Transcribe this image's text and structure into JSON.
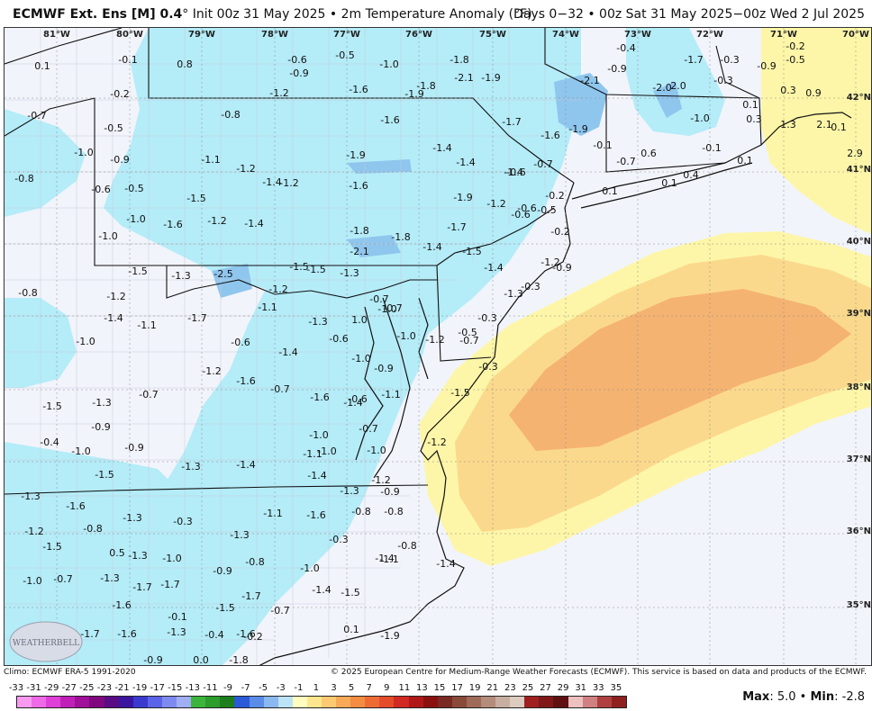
{
  "header": {
    "title_bold": "ECMWF Ext. Ens [M] 0.4",
    "title_rest": "° Init 00z 31 May 2025 • 2m Temperature Anomaly (°F)",
    "valid": "Days 0−32 • 00z Sat 31 May 2025−00z Wed 2 Jul 2025"
  },
  "footer": {
    "climo": "Climo: ECMWF ERA-5 1991-2020",
    "copyright": "© 2025 European Centre for Medium-Range Weather Forecasts (ECMWF). This service is based on data and products of the ECMWF.",
    "max_label": "Max",
    "max_value": "5.0",
    "min_label": "Min",
    "min_value": "-2.8"
  },
  "colors": {
    "background_land": "#f2f4fb",
    "cool_anomaly": "#b4ecf8",
    "cooler_anomaly": "#8fc6ee",
    "warm_light": "#fdf6a8",
    "warm_mid": "#fbd98c",
    "warm_strong": "#f5b372",
    "border": "#111111"
  },
  "map": {
    "longitudes": [
      "81°W",
      "80°W",
      "79°W",
      "78°W",
      "77°W",
      "76°W",
      "75°W",
      "74°W",
      "73°W",
      "72°W",
      "71°W",
      "70°W"
    ],
    "latitudes": [
      "42°N",
      "41°N",
      "40°N",
      "39°N",
      "38°N",
      "37°N",
      "36°N",
      "35°N"
    ],
    "values": [
      {
        "v": "0.1"
      },
      {
        "v": "-0.1"
      },
      {
        "v": "0.8"
      },
      {
        "v": "-0.6"
      },
      {
        "v": "-0.9"
      },
      {
        "v": "-0.5"
      },
      {
        "v": "-1.0"
      },
      {
        "v": "-1.8"
      },
      {
        "v": "-2.1"
      },
      {
        "v": "-1.9"
      },
      {
        "v": "-2.1"
      },
      {
        "v": "-0.4"
      },
      {
        "v": "-0.9"
      },
      {
        "v": "-1.7"
      },
      {
        "v": "-0.3"
      },
      {
        "v": "-0.9"
      },
      {
        "v": "-0.5"
      },
      {
        "v": "-0.2"
      },
      {
        "v": "-1.2"
      },
      {
        "v": "-1.6"
      },
      {
        "v": "-1.8"
      },
      {
        "v": "-1.9"
      },
      {
        "v": "-2.0"
      },
      {
        "v": "2.0"
      },
      {
        "v": "-0.3"
      },
      {
        "v": "0.3"
      },
      {
        "v": "0.9"
      },
      {
        "v": "-0.2"
      },
      {
        "v": "-0.5"
      },
      {
        "v": "-0.8"
      },
      {
        "v": "-1.6"
      },
      {
        "v": "-1.7"
      },
      {
        "v": "-1.6"
      },
      {
        "v": "-1.9"
      },
      {
        "v": "-1.0"
      },
      {
        "v": "0.1"
      },
      {
        "v": "0.3"
      },
      {
        "v": "1.3"
      },
      {
        "v": "2.1"
      },
      {
        "v": "-0.7"
      },
      {
        "v": "-1.0"
      },
      {
        "v": "-0.9"
      },
      {
        "v": "-1.1"
      },
      {
        "v": "-1.2"
      },
      {
        "v": "-1.9"
      },
      {
        "v": "-1.4"
      },
      {
        "v": "-1.4"
      },
      {
        "v": "-0.7"
      },
      {
        "v": "-0.6"
      },
      {
        "v": "-0.1"
      },
      {
        "v": "-0.7"
      },
      {
        "v": "0.6"
      },
      {
        "v": "-0.1"
      },
      {
        "v": "0.1"
      },
      {
        "v": "0.1"
      },
      {
        "v": "2.9"
      },
      {
        "v": "-0.8"
      },
      {
        "v": "-0.6"
      },
      {
        "v": "-0.5"
      },
      {
        "v": "-1.5"
      },
      {
        "v": "-1.4"
      },
      {
        "v": "-1.2"
      },
      {
        "v": "-1.6"
      },
      {
        "v": "-1.4"
      },
      {
        "v": "-0.2"
      },
      {
        "v": "0.1"
      },
      {
        "v": "0.1"
      },
      {
        "v": "0.4"
      },
      {
        "v": "-0.5"
      },
      {
        "v": "-1.0"
      },
      {
        "v": "-1.6"
      },
      {
        "v": "-1.2"
      },
      {
        "v": "-1.4"
      },
      {
        "v": "-1.9"
      },
      {
        "v": "-1.2"
      },
      {
        "v": "-0.6"
      },
      {
        "v": "-0.6"
      },
      {
        "v": "-1.0"
      },
      {
        "v": "-1.8"
      },
      {
        "v": "-1.8"
      },
      {
        "v": "-1.7"
      },
      {
        "v": "-0.2"
      },
      {
        "v": "-2.1"
      },
      {
        "v": "-1.4"
      },
      {
        "v": "-1.5"
      },
      {
        "v": "-1.5"
      },
      {
        "v": "-1.3"
      },
      {
        "v": "-2.5"
      },
      {
        "v": "-1.5"
      },
      {
        "v": "-1.5"
      },
      {
        "v": "-1.3"
      },
      {
        "v": "-1.4"
      },
      {
        "v": "-1.2"
      },
      {
        "v": "-0.7"
      },
      {
        "v": "-0.8"
      },
      {
        "v": "-1.2"
      },
      {
        "v": "-1.2"
      },
      {
        "v": "-0.9"
      },
      {
        "v": "-0.7"
      },
      {
        "v": "-1.3"
      },
      {
        "v": "-0.3"
      },
      {
        "v": "-0.3"
      },
      {
        "v": "-1.1"
      },
      {
        "v": "-1.4"
      },
      {
        "v": "-1.1"
      },
      {
        "v": "-1.7"
      },
      {
        "v": "-1.0"
      },
      {
        "v": "-0.6"
      },
      {
        "v": "-1.3"
      },
      {
        "v": "1.0"
      },
      {
        "v": "-1.0"
      },
      {
        "v": "-0.5"
      },
      {
        "v": "-1.0"
      },
      {
        "v": "-0.6"
      },
      {
        "v": "-0.7"
      },
      {
        "v": "-1.4"
      },
      {
        "v": "-1.2"
      },
      {
        "v": "-1.0"
      },
      {
        "v": "-0.9"
      },
      {
        "v": "-1.6"
      },
      {
        "v": "-0.3"
      },
      {
        "v": "-1.5"
      },
      {
        "v": "-1.2"
      },
      {
        "v": "-0.7"
      },
      {
        "v": "-0.7"
      },
      {
        "v": "-1.6"
      },
      {
        "v": "-1.4"
      },
      {
        "v": "-1.1"
      },
      {
        "v": "-1.2"
      },
      {
        "v": "-1.5"
      },
      {
        "v": "-1.3"
      },
      {
        "v": "-0.9"
      },
      {
        "v": "-0.6"
      },
      {
        "v": "-1.0"
      },
      {
        "v": "-0.7"
      },
      {
        "v": "-1.0"
      },
      {
        "v": "-1.1"
      },
      {
        "v": "-1.4"
      },
      {
        "v": "-1.4"
      },
      {
        "v": "-1.3"
      },
      {
        "v": "-0.4"
      },
      {
        "v": "-1.0"
      },
      {
        "v": "-0.9"
      },
      {
        "v": "-1.5"
      },
      {
        "v": "-1.0"
      },
      {
        "v": "-1.2"
      },
      {
        "v": "-1.3"
      },
      {
        "v": "-0.9"
      },
      {
        "v": "-0.3"
      },
      {
        "v": "-1.3"
      },
      {
        "v": "-1.1"
      },
      {
        "v": "-1.3"
      },
      {
        "v": "-1.6"
      },
      {
        "v": "-1.2"
      },
      {
        "v": "-1.6"
      },
      {
        "v": "-0.8"
      },
      {
        "v": "-0.8"
      },
      {
        "v": "-0.8"
      },
      {
        "v": "-1.3"
      },
      {
        "v": "-1.5"
      },
      {
        "v": "-0.3"
      },
      {
        "v": "-0.8"
      },
      {
        "v": "0.5"
      },
      {
        "v": "-1.3"
      },
      {
        "v": "-1.0"
      },
      {
        "v": "-0.8"
      },
      {
        "v": "-1.0"
      },
      {
        "v": "-1.1"
      },
      {
        "v": "-1.4"
      },
      {
        "v": "-1.4"
      },
      {
        "v": "-1.0"
      },
      {
        "v": "-0.7"
      },
      {
        "v": "-1.3"
      },
      {
        "v": "-1.7"
      },
      {
        "v": "-1.7"
      },
      {
        "v": "-0.9"
      },
      {
        "v": "-1.4"
      },
      {
        "v": "-1.5"
      },
      {
        "v": "-1.6"
      },
      {
        "v": "-1.7"
      },
      {
        "v": "-1.5"
      },
      {
        "v": "-0.7"
      },
      {
        "v": "-0.1"
      },
      {
        "v": "-1.6"
      },
      {
        "v": "-1.7"
      },
      {
        "v": "-1.6"
      },
      {
        "v": "-1.3"
      },
      {
        "v": "-0.4"
      },
      {
        "v": "-0.2"
      },
      {
        "v": "0.1"
      },
      {
        "v": "-1.9"
      },
      {
        "v": "-2.0"
      },
      {
        "v": "-0.9"
      },
      {
        "v": "0.0"
      },
      {
        "v": "-1.8"
      }
    ]
  },
  "legend": {
    "ticks": [
      "-33",
      "-31",
      "-29",
      "-27",
      "-25",
      "-23",
      "-21",
      "-19",
      "-17",
      "-15",
      "-13",
      "-11",
      "-9",
      "-7",
      "-5",
      "-3",
      "-1",
      "1",
      "3",
      "5",
      "7",
      "9",
      "11",
      "13",
      "15",
      "17",
      "19",
      "21",
      "23",
      "25",
      "27",
      "29",
      "31",
      "33",
      "35"
    ],
    "colors": [
      "#f89bf0",
      "#ee6ae6",
      "#e03fd8",
      "#c020b8",
      "#a0109a",
      "#80087e",
      "#5a0c84",
      "#3a16a0",
      "#3a3ad0",
      "#5a64e8",
      "#7f8af0",
      "#a0aef4",
      "#3cb43c",
      "#2c9c2c",
      "#1c7e1c",
      "#2a5ad8",
      "#5a8ce8",
      "#8ab8f0",
      "#bce2f6",
      "#fffcc0",
      "#fde68e",
      "#fcca72",
      "#f8aa58",
      "#f48c42",
      "#ee6c34",
      "#e44c2a",
      "#d02a22",
      "#b01818",
      "#8a1010",
      "#7a2a22",
      "#8a4a3a",
      "#a06a58",
      "#b48c7c",
      "#c8aea0",
      "#dcccc0",
      "#a02020",
      "#801818",
      "#601010",
      "#eec0c0",
      "#d08080",
      "#b04040",
      "#902020"
    ]
  }
}
